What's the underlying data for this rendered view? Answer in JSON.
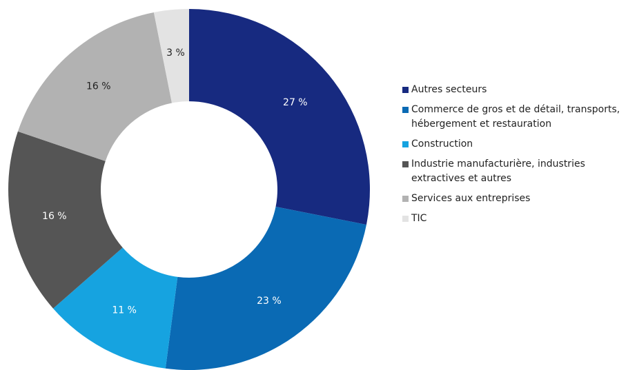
{
  "chart_data": {
    "type": "donut",
    "categories": [
      "Autres secteurs",
      "Commerce de gros et de détail, transports, hébergement et restauration",
      "Construction",
      "Industrie manufacturière, industries extractives et autres",
      "Services aux entreprises",
      "TIC"
    ],
    "values": [
      27,
      23,
      11,
      16,
      16,
      3
    ],
    "value_labels": [
      "27 %",
      "23 %",
      "11 %",
      "16 %",
      "16 %",
      "3 %"
    ],
    "colors": [
      "#172a80",
      "#0a6ab4",
      "#16a3e0",
      "#555555",
      "#b2b2b2",
      "#e3e3e3"
    ],
    "legend": "right"
  }
}
